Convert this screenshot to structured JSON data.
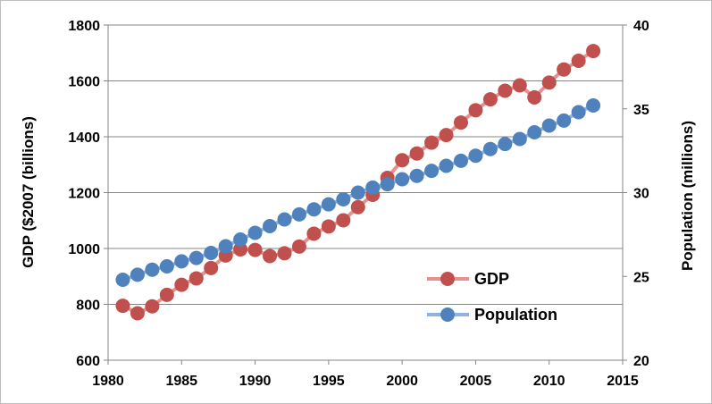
{
  "chart_data": {
    "type": "line",
    "title": "",
    "xlabel": "",
    "ylabel": "GDP ($2007 (billions)",
    "y2label": "Population (millions)",
    "xlim": [
      1980,
      2015
    ],
    "ylim": [
      600,
      1800
    ],
    "y2lim": [
      20,
      40
    ],
    "x_ticks": [
      1980,
      1985,
      1990,
      1995,
      2000,
      2005,
      2010,
      2015
    ],
    "y_ticks": [
      600,
      800,
      1000,
      1200,
      1400,
      1600,
      1800
    ],
    "y2_ticks": [
      20,
      25,
      30,
      35,
      40
    ],
    "grid": "horizontal",
    "legend_position": "bottom-right",
    "x": [
      1981,
      1982,
      1983,
      1984,
      1985,
      1986,
      1987,
      1988,
      1989,
      1990,
      1991,
      1992,
      1993,
      1994,
      1995,
      1996,
      1997,
      1998,
      1999,
      2000,
      2001,
      2002,
      2003,
      2004,
      2005,
      2006,
      2007,
      2008,
      2009,
      2010,
      2011,
      2012,
      2013
    ],
    "series": [
      {
        "name": "GDP",
        "axis": "left",
        "color": "#c0504d",
        "values": [
          795,
          768,
          793,
          834,
          870,
          893,
          930,
          975,
          997,
          995,
          973,
          983,
          1007,
          1053,
          1079,
          1101,
          1148,
          1192,
          1253,
          1316,
          1340,
          1379,
          1406,
          1451,
          1495,
          1534,
          1565,
          1584,
          1541,
          1594,
          1641,
          1672,
          1707
        ]
      },
      {
        "name": "Population",
        "axis": "right",
        "color": "#4f81bd",
        "values": [
          24.8,
          25.1,
          25.4,
          25.6,
          25.9,
          26.1,
          26.4,
          26.8,
          27.2,
          27.6,
          28.0,
          28.4,
          28.7,
          29.0,
          29.3,
          29.6,
          30.0,
          30.3,
          30.5,
          30.8,
          31.0,
          31.3,
          31.6,
          31.9,
          32.2,
          32.6,
          32.9,
          33.2,
          33.6,
          34.0,
          34.3,
          34.8,
          35.2
        ]
      }
    ]
  }
}
